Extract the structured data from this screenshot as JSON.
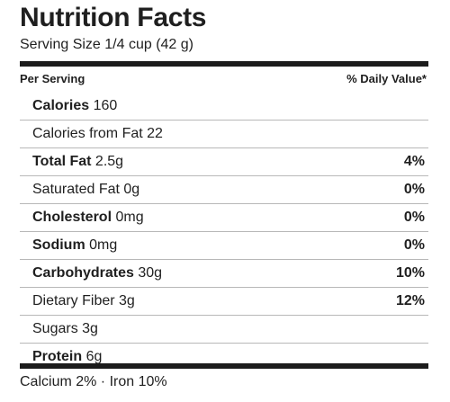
{
  "label": {
    "title": "Nutrition Facts",
    "serving_size": "Serving Size 1/4 cup (42 g)",
    "header_left": "Per Serving",
    "header_right": "% Daily Value*",
    "rows": [
      {
        "name": "Calories",
        "value": " 160",
        "dv": ""
      },
      {
        "name": "",
        "value": "Calories from Fat 22",
        "dv": ""
      },
      {
        "name": "Total Fat",
        "value": " 2.5g",
        "dv": "4%"
      },
      {
        "name": "",
        "value": "Saturated Fat 0g",
        "dv": "0%"
      },
      {
        "name": "Cholesterol",
        "value": " 0mg",
        "dv": "0%"
      },
      {
        "name": "Sodium",
        "value": " 0mg",
        "dv": "0%"
      },
      {
        "name": "Carbohydrates",
        "value": " 30g",
        "dv": "10%"
      },
      {
        "name": "",
        "value": "Dietary Fiber 3g",
        "dv": "12%"
      },
      {
        "name": "",
        "value": "Sugars 3g",
        "dv": ""
      },
      {
        "name": "Protein",
        "value": " 6g",
        "dv": ""
      }
    ],
    "footer": "Calcium 2% · Iron 10%"
  }
}
